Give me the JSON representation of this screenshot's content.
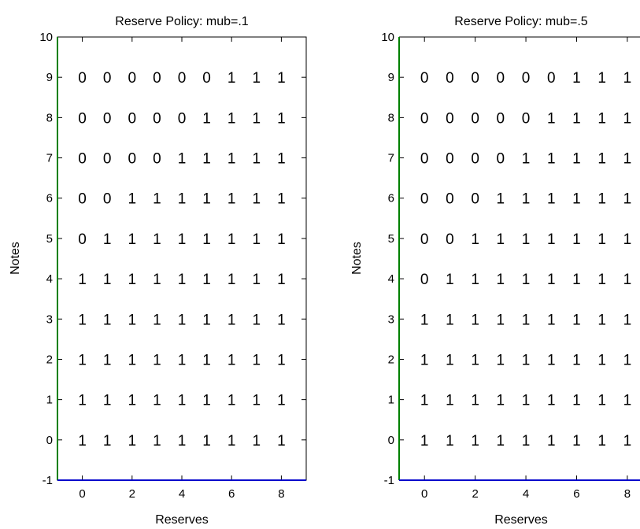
{
  "chart_data": [
    {
      "type": "table",
      "title": "Reserve Policy: mub=.1",
      "xlabel": "Reserves",
      "ylabel": "Notes",
      "xlim": [
        -1,
        9
      ],
      "ylim": [
        -1,
        10
      ],
      "xticks": [
        "0",
        "2",
        "4",
        "6",
        "8"
      ],
      "yticks": [
        "-1",
        "0",
        "1",
        "2",
        "3",
        "4",
        "5",
        "6",
        "7",
        "8",
        "9",
        "10"
      ],
      "columns": [
        0,
        1,
        2,
        3,
        4,
        5,
        6,
        7,
        8
      ],
      "rows": [
        {
          "notes": 9,
          "values": [
            0,
            0,
            0,
            0,
            0,
            0,
            1,
            1,
            1
          ]
        },
        {
          "notes": 8,
          "values": [
            0,
            0,
            0,
            0,
            0,
            1,
            1,
            1,
            1
          ]
        },
        {
          "notes": 7,
          "values": [
            0,
            0,
            0,
            0,
            1,
            1,
            1,
            1,
            1
          ]
        },
        {
          "notes": 6,
          "values": [
            0,
            0,
            1,
            1,
            1,
            1,
            1,
            1,
            1
          ]
        },
        {
          "notes": 5,
          "values": [
            0,
            1,
            1,
            1,
            1,
            1,
            1,
            1,
            1
          ]
        },
        {
          "notes": 4,
          "values": [
            1,
            1,
            1,
            1,
            1,
            1,
            1,
            1,
            1
          ]
        },
        {
          "notes": 3,
          "values": [
            1,
            1,
            1,
            1,
            1,
            1,
            1,
            1,
            1
          ]
        },
        {
          "notes": 2,
          "values": [
            1,
            1,
            1,
            1,
            1,
            1,
            1,
            1,
            1
          ]
        },
        {
          "notes": 1,
          "values": [
            1,
            1,
            1,
            1,
            1,
            1,
            1,
            1,
            1
          ]
        },
        {
          "notes": 0,
          "values": [
            1,
            1,
            1,
            1,
            1,
            1,
            1,
            1,
            1
          ]
        }
      ],
      "left_edge_color": "#008000",
      "bottom_edge_color": "#0000cc"
    },
    {
      "type": "table",
      "title": "Reserve Policy: mub=.5",
      "xlabel": "Reserves",
      "ylabel": "Notes",
      "xlim": [
        -1,
        8.5
      ],
      "ylim": [
        -1,
        10
      ],
      "xticks": [
        "0",
        "2",
        "4",
        "6",
        "8"
      ],
      "yticks": [
        "-1",
        "0",
        "1",
        "2",
        "3",
        "4",
        "5",
        "6",
        "7",
        "8",
        "9",
        "10"
      ],
      "columns": [
        0,
        1,
        2,
        3,
        4,
        5,
        6,
        7,
        8
      ],
      "rows": [
        {
          "notes": 9,
          "values": [
            0,
            0,
            0,
            0,
            0,
            0,
            1,
            1,
            1
          ]
        },
        {
          "notes": 8,
          "values": [
            0,
            0,
            0,
            0,
            0,
            1,
            1,
            1,
            1
          ]
        },
        {
          "notes": 7,
          "values": [
            0,
            0,
            0,
            0,
            1,
            1,
            1,
            1,
            1
          ]
        },
        {
          "notes": 6,
          "values": [
            0,
            0,
            0,
            1,
            1,
            1,
            1,
            1,
            1
          ]
        },
        {
          "notes": 5,
          "values": [
            0,
            0,
            1,
            1,
            1,
            1,
            1,
            1,
            1
          ]
        },
        {
          "notes": 4,
          "values": [
            0,
            1,
            1,
            1,
            1,
            1,
            1,
            1,
            1
          ]
        },
        {
          "notes": 3,
          "values": [
            1,
            1,
            1,
            1,
            1,
            1,
            1,
            1,
            1
          ]
        },
        {
          "notes": 2,
          "values": [
            1,
            1,
            1,
            1,
            1,
            1,
            1,
            1,
            1
          ]
        },
        {
          "notes": 1,
          "values": [
            1,
            1,
            1,
            1,
            1,
            1,
            1,
            1,
            1
          ]
        },
        {
          "notes": 0,
          "values": [
            1,
            1,
            1,
            1,
            1,
            1,
            1,
            1,
            1
          ]
        }
      ],
      "left_edge_color": "#008000",
      "bottom_edge_color": "#0000cc"
    }
  ]
}
